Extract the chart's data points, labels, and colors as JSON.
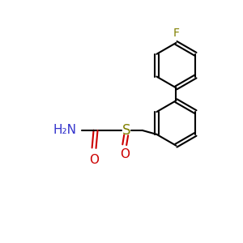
{
  "background_color": "#ffffff",
  "bond_color": "#000000",
  "label_NH2": "H₂N",
  "label_NH2_color": "#3333cc",
  "label_O_carbonyl": "O",
  "label_O_carbonyl_color": "#cc0000",
  "label_S": "S",
  "label_S_color": "#808000",
  "label_O_sulfinyl": "O",
  "label_O_sulfinyl_color": "#cc0000",
  "label_F": "F",
  "label_F_color": "#808000",
  "figsize": [
    3.0,
    3.0
  ],
  "dpi": 100
}
